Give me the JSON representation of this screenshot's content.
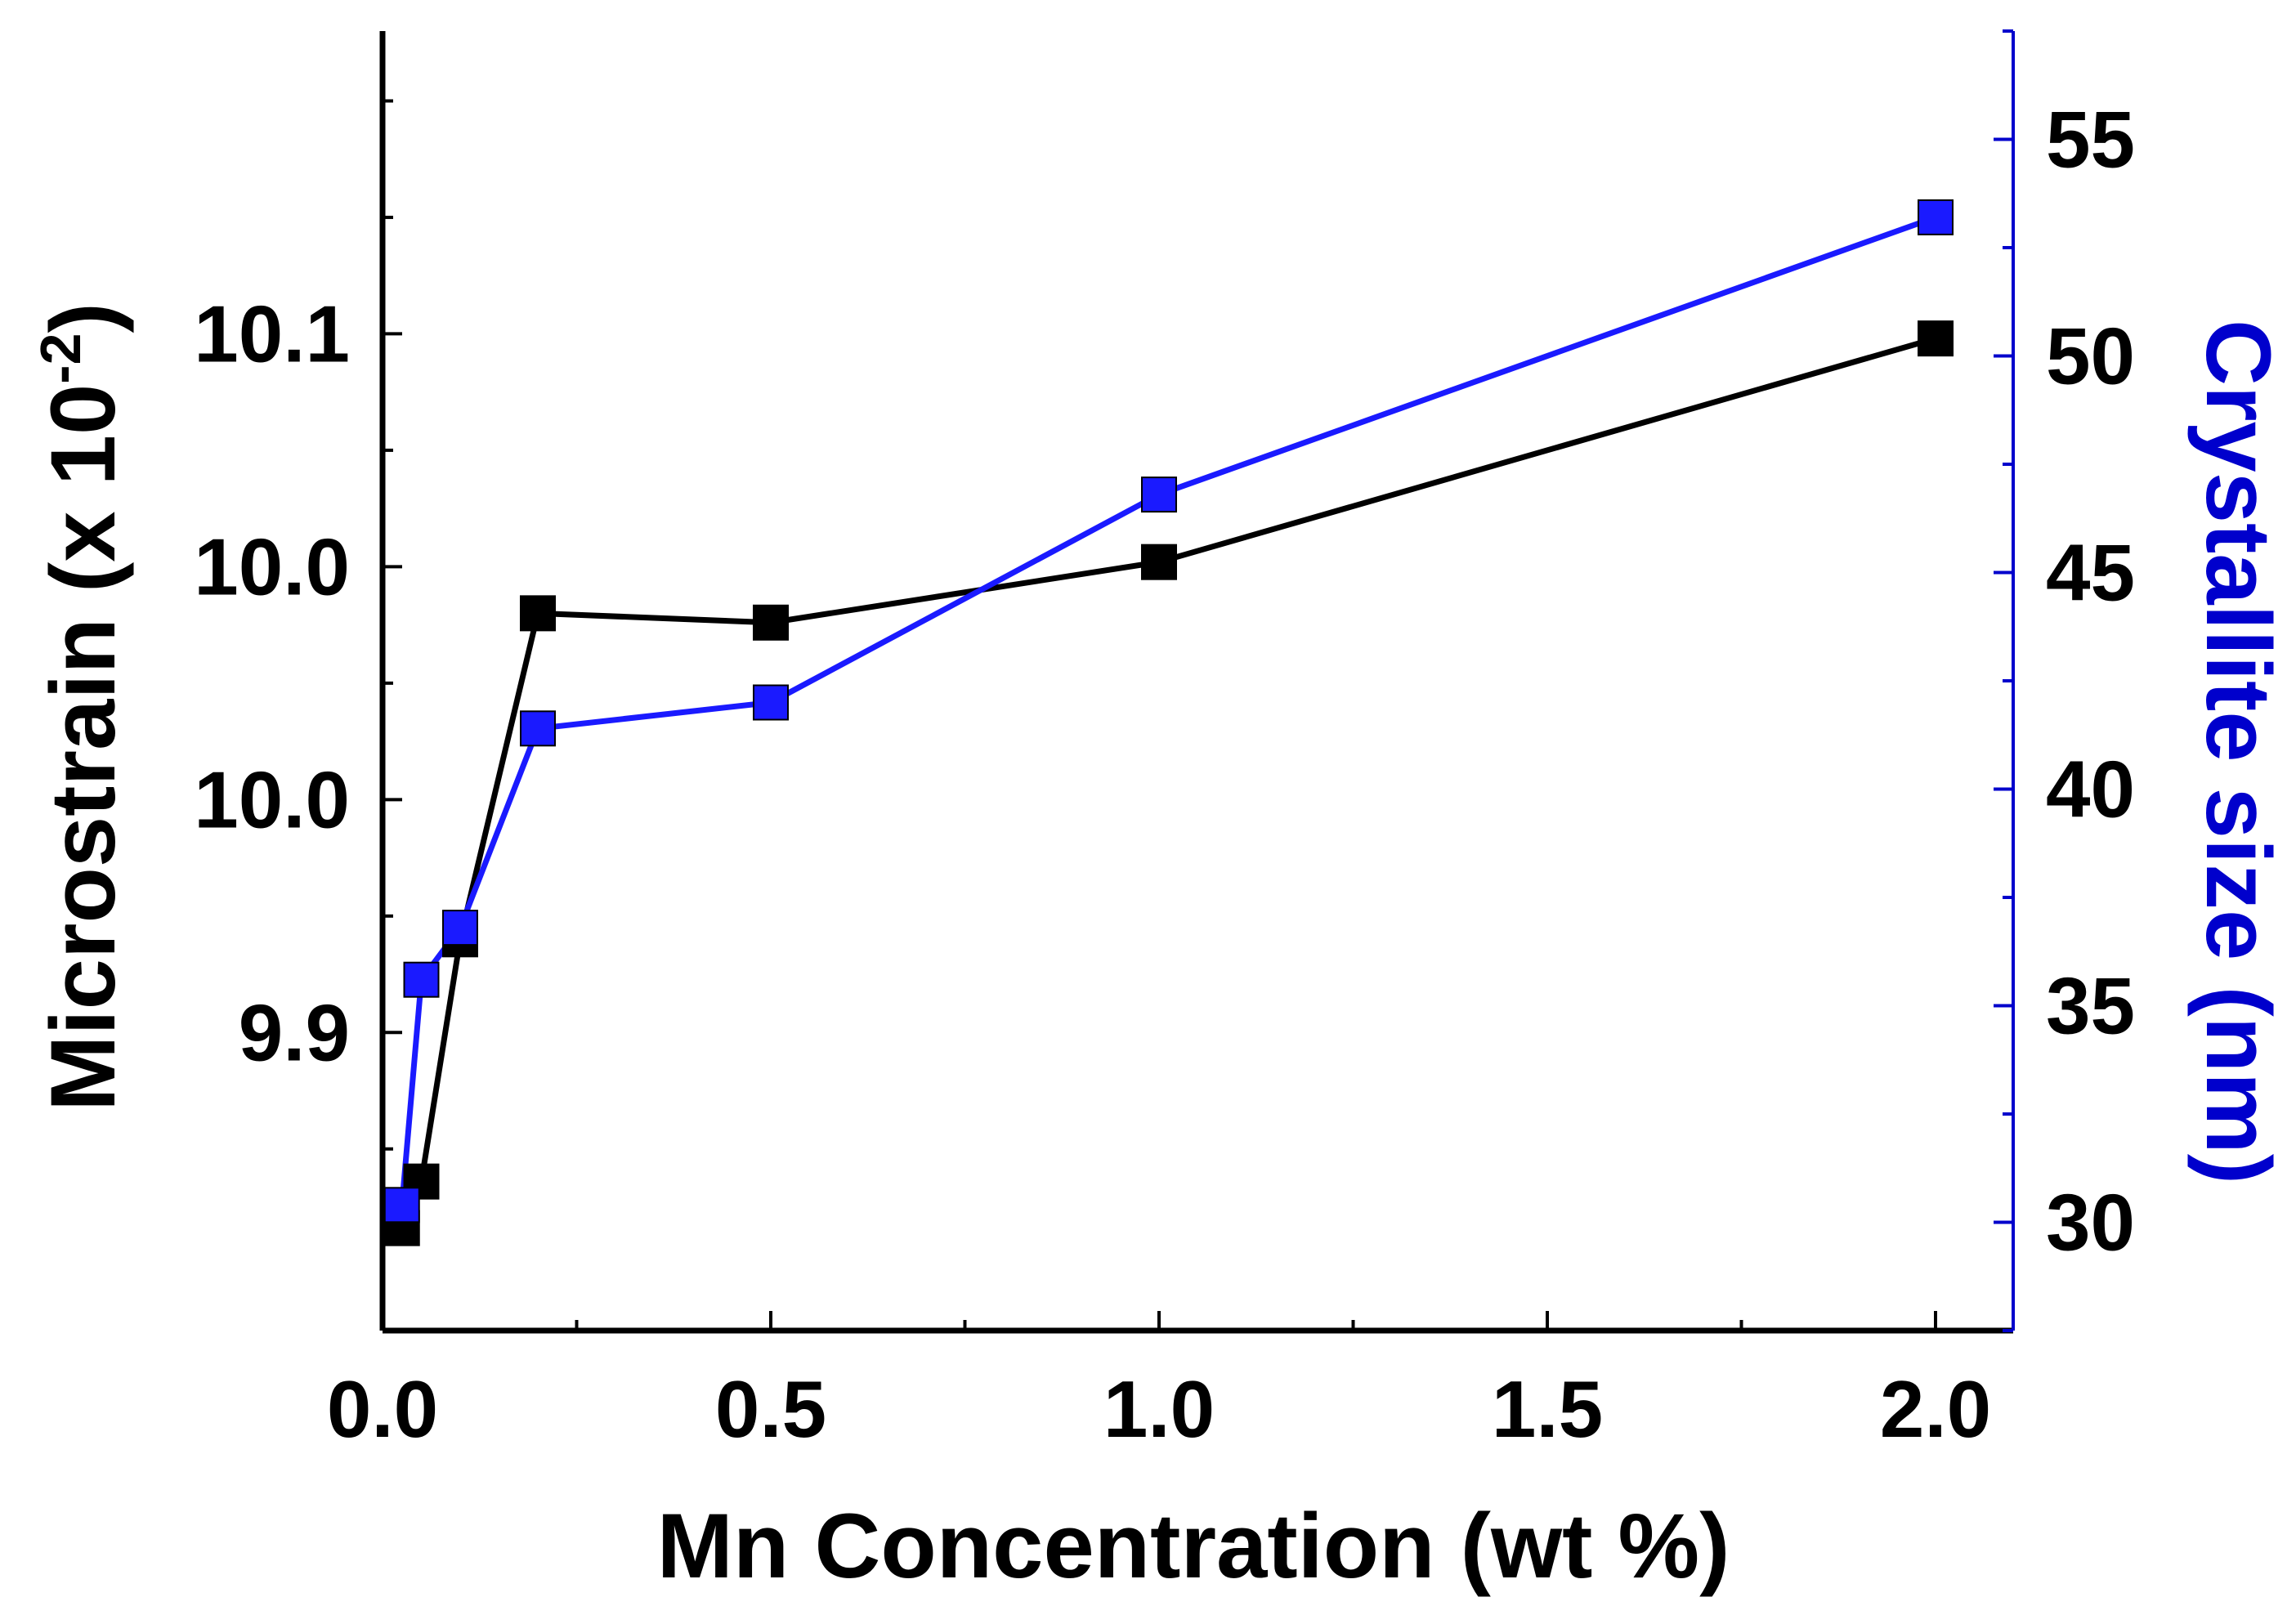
{
  "chart_data": {
    "type": "line",
    "x": [
      0.025,
      0.05,
      0.1,
      0.2,
      0.5,
      1.0,
      2.0
    ],
    "xlabel": "Mn Concentration (wt %)",
    "xlim": [
      0.0,
      2.1
    ],
    "xticks": [
      "0.0",
      "0.5",
      "1.0",
      "1.5",
      "2.0"
    ],
    "xtick_values": [
      0.0,
      0.5,
      1.0,
      1.5,
      2.0
    ],
    "y_left": {
      "label_main": "Microstrain (x 10",
      "label_sup": "-2",
      "label_end": ")",
      "color": "#000000",
      "tick_labels": [
        "9.9",
        "10.0",
        "10.0",
        "10.1"
      ],
      "tick_positions": [
        9.9,
        9.95,
        10.0,
        10.05
      ]
    },
    "y_right": {
      "label": "Crystallite size (nm)",
      "color": "#0000cc",
      "ylim": [
        27.5,
        57.5
      ],
      "ticks": [
        "30",
        "35",
        "40",
        "45",
        "50",
        "55"
      ],
      "tick_values": [
        30,
        35,
        40,
        45,
        50,
        55
      ]
    },
    "series": [
      {
        "name": "Microstrain",
        "axis": "left",
        "color": "#000000",
        "values": [
          9.858,
          9.868,
          9.92,
          9.99,
          9.988,
          10.001,
          10.049
        ]
      },
      {
        "name": "Crystallite size",
        "axis": "right",
        "color": "#1a1aff",
        "values": [
          30.4,
          35.6,
          36.8,
          41.4,
          42.0,
          46.8,
          53.2
        ]
      }
    ]
  }
}
